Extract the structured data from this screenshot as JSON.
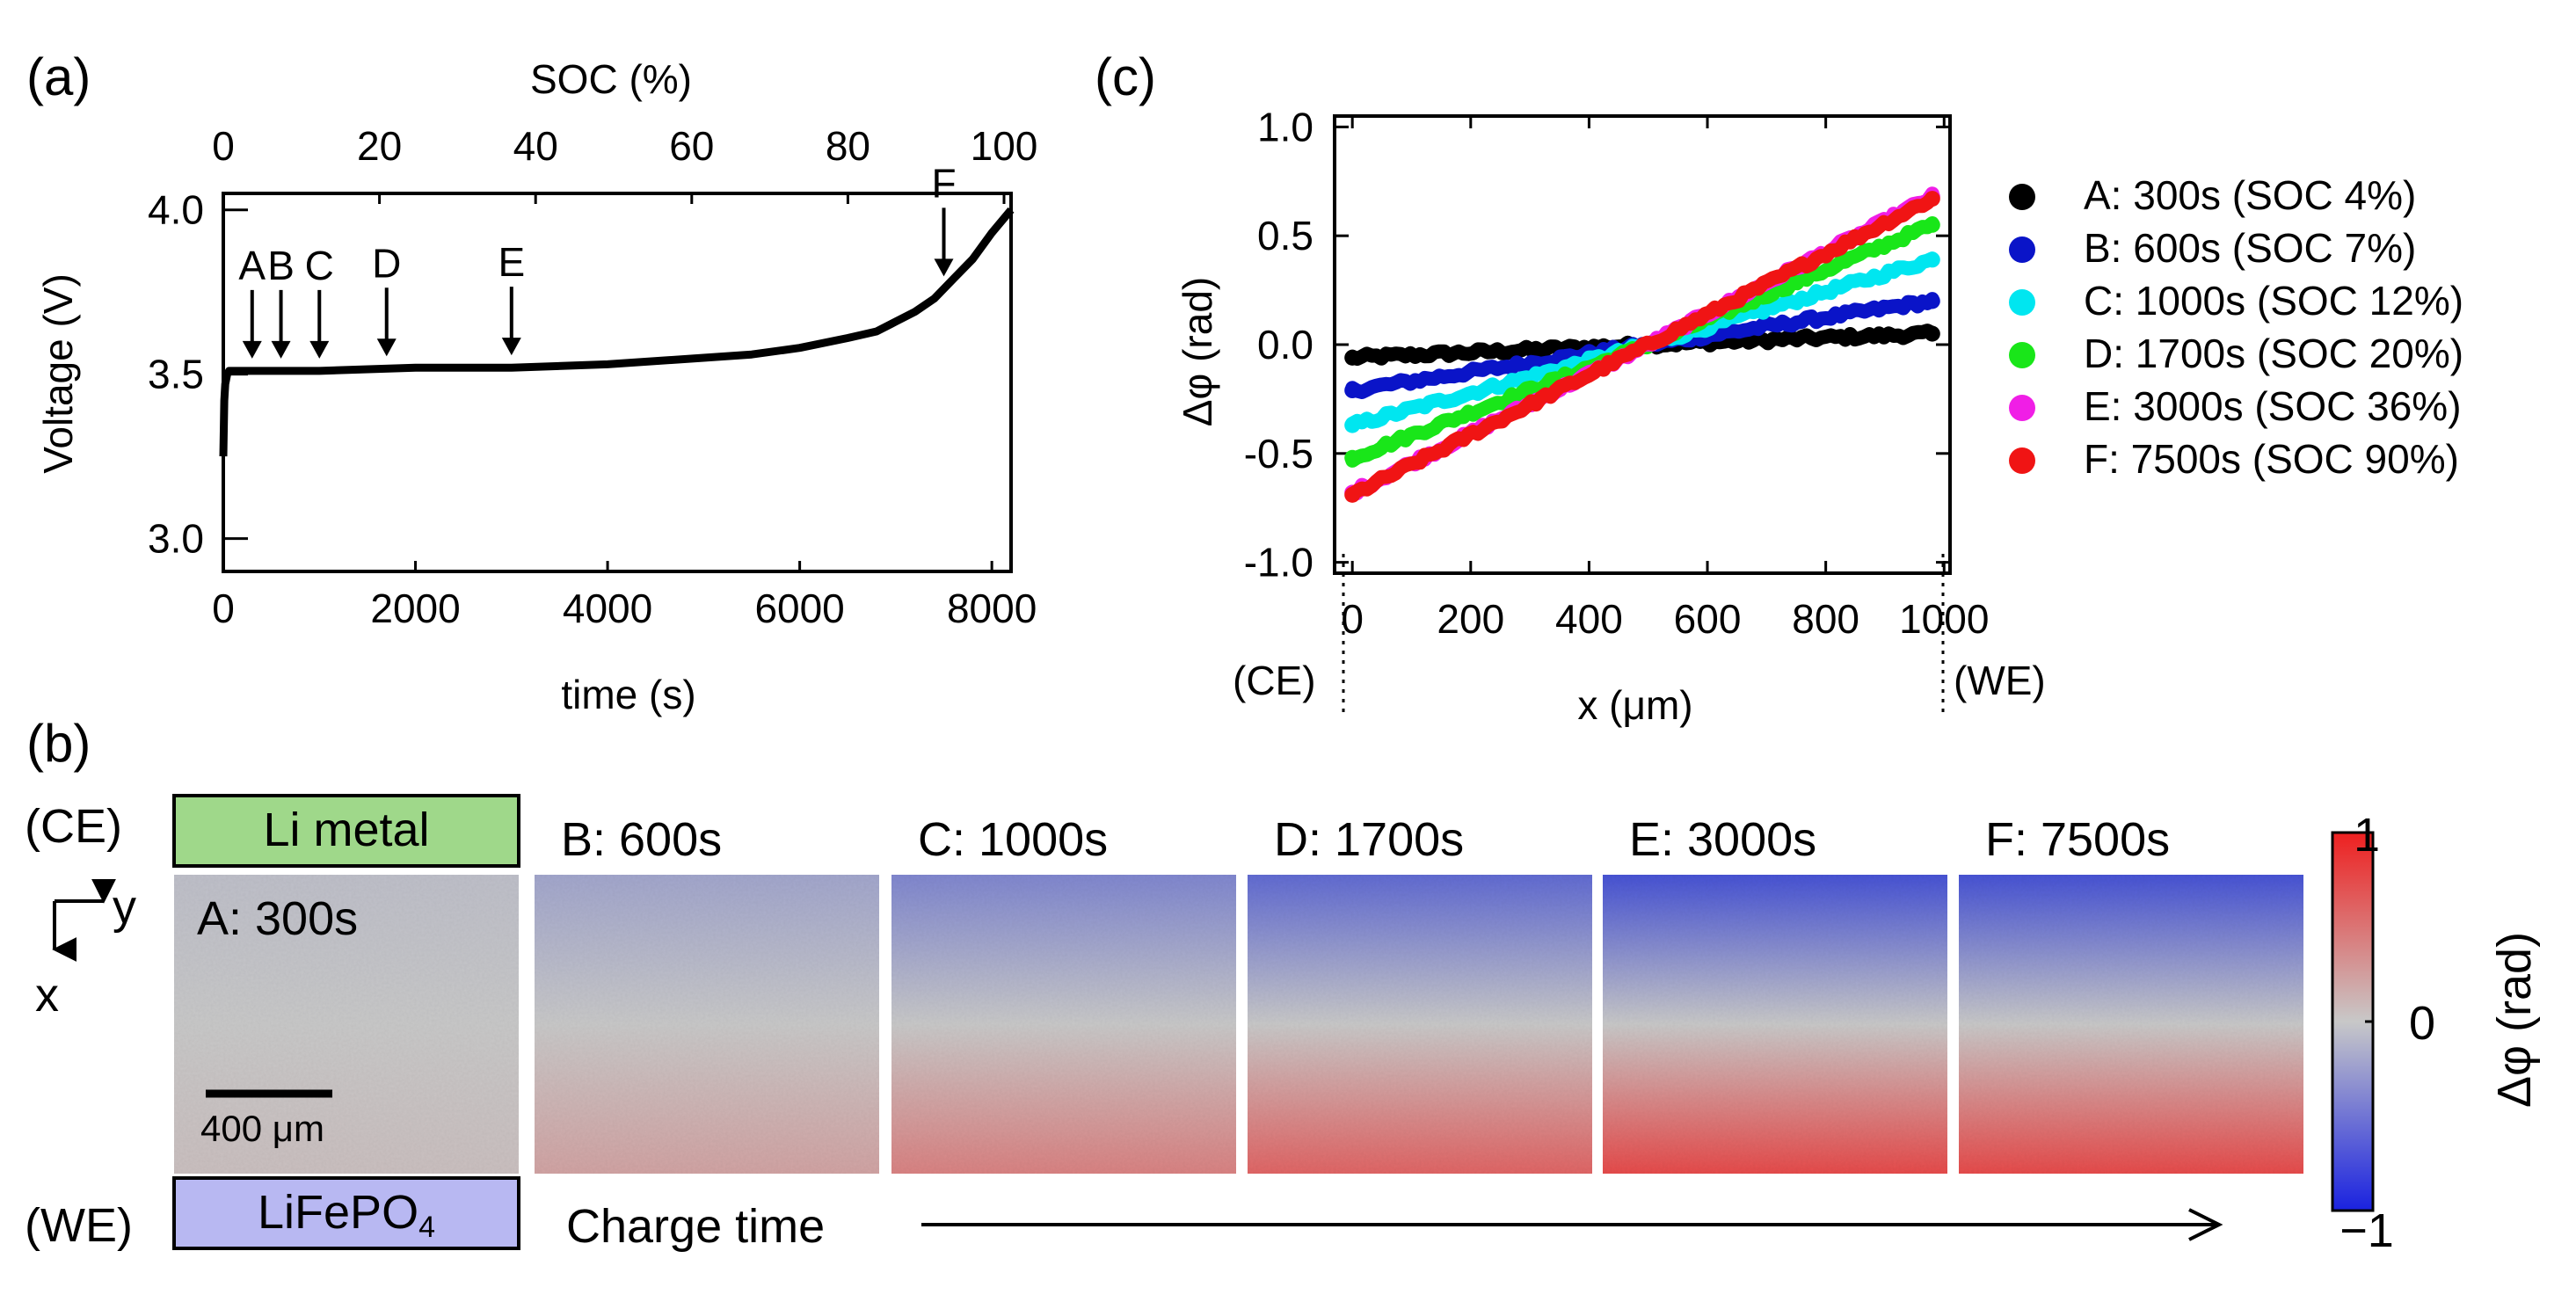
{
  "panel_labels": {
    "a": "(a)",
    "b": "(b)",
    "c": "(c)"
  },
  "chart_data": [
    {
      "id": "a",
      "type": "line",
      "xlabel": "time (s)",
      "xlabel_top": "SOC (%)",
      "ylabel": "Voltage (V)",
      "xlim": [
        0,
        8200
      ],
      "xlim_top": [
        0,
        100
      ],
      "ylim": [
        2.9,
        4.05
      ],
      "xticks": [
        "0",
        "2000",
        "4000",
        "6000",
        "8000"
      ],
      "xticks_values": [
        0,
        2000,
        4000,
        6000,
        8000
      ],
      "xticks_top": [
        "0",
        "20",
        "40",
        "60",
        "80",
        "100"
      ],
      "xticks_top_values": [
        0,
        20,
        40,
        60,
        80,
        100
      ],
      "yticks": [
        "3.0",
        "3.5",
        "4.0"
      ],
      "yticks_values": [
        3.0,
        3.5,
        4.0
      ],
      "series": [
        {
          "name": "charge curve",
          "x": [
            0,
            10,
            20,
            40,
            60,
            100,
            200,
            500,
            1000,
            2000,
            3000,
            4000,
            5000,
            5500,
            6000,
            6500,
            6800,
            7000,
            7200,
            7400,
            7600,
            7800,
            8000,
            8200
          ],
          "y": [
            3.25,
            3.42,
            3.47,
            3.5,
            3.51,
            3.51,
            3.51,
            3.51,
            3.51,
            3.52,
            3.52,
            3.53,
            3.55,
            3.56,
            3.58,
            3.61,
            3.63,
            3.66,
            3.69,
            3.73,
            3.79,
            3.85,
            3.93,
            4.0
          ]
        }
      ],
      "annotations": [
        {
          "label": "A",
          "x": 300
        },
        {
          "label": "B",
          "x": 600
        },
        {
          "label": "C",
          "x": 1000
        },
        {
          "label": "D",
          "x": 1700
        },
        {
          "label": "E",
          "x": 3000
        },
        {
          "label": "F",
          "x": 7500
        }
      ]
    },
    {
      "id": "c",
      "type": "scatter",
      "xlabel": "x (μm)",
      "ylabel": "Δφ (rad)",
      "xlim": [
        -30,
        1010
      ],
      "ylim": [
        -1.05,
        1.05
      ],
      "xticks": [
        "0",
        "200",
        "400",
        "600",
        "800",
        "1000"
      ],
      "xticks_values": [
        0,
        200,
        400,
        600,
        800,
        1000
      ],
      "yticks": [
        "1.0",
        "0.5",
        "0.0",
        "-0.5",
        "-1.0"
      ],
      "yticks_values": [
        1.0,
        0.5,
        0.0,
        -0.5,
        -1.0
      ],
      "edge_labels": {
        "left": "(CE)",
        "right": "(WE)"
      },
      "legend_position": "right",
      "series": [
        {
          "name": "A: 300s (SOC 4%)",
          "color": "#000000",
          "x": [
            0,
            500,
            980
          ],
          "y": [
            -0.06,
            0.0,
            0.05
          ]
        },
        {
          "name": "B: 600s (SOC 7%)",
          "color": "#0a14c8",
          "x": [
            0,
            500,
            980
          ],
          "y": [
            -0.21,
            0.0,
            0.2
          ]
        },
        {
          "name": "C: 1000s (SOC 12%)",
          "color": "#00e6f0",
          "x": [
            0,
            500,
            980
          ],
          "y": [
            -0.37,
            0.0,
            0.39
          ]
        },
        {
          "name": "D: 1700s (SOC 20%)",
          "color": "#19e619",
          "x": [
            0,
            500,
            980
          ],
          "y": [
            -0.52,
            0.0,
            0.55
          ]
        },
        {
          "name": "E: 3000s (SOC 36%)",
          "color": "#f01ee6",
          "x": [
            0,
            500,
            980
          ],
          "y": [
            -0.68,
            0.0,
            0.68
          ]
        },
        {
          "name": "F: 7500s (SOC 90%)",
          "color": "#f01414",
          "x": [
            0,
            500,
            980
          ],
          "y": [
            -0.69,
            0.0,
            0.67
          ]
        }
      ]
    },
    {
      "id": "b",
      "type": "heatmap",
      "electrode_top": "Li metal",
      "electrode_top_label": "(CE)",
      "electrode_bottom": "LiFePO",
      "electrode_bottom_sub": "4",
      "electrode_bottom_label": "(WE)",
      "axis_y": "y",
      "axis_x": "x",
      "scale_bar": "400 μm",
      "charge_time_label": "Charge time",
      "colorbar": {
        "label": "Δφ (rad)",
        "max": "1",
        "mid": "0",
        "min": "−1"
      },
      "frames": [
        {
          "label": "A: 300s",
          "amplitude": 0.05
        },
        {
          "label": "B: 600s",
          "amplitude": 0.2
        },
        {
          "label": "C: 1000s",
          "amplitude": 0.38
        },
        {
          "label": "D: 1700s",
          "amplitude": 0.54
        },
        {
          "label": "E: 3000s",
          "amplitude": 0.68
        },
        {
          "label": "F: 7500s",
          "amplitude": 0.68
        }
      ]
    }
  ],
  "colors": {
    "li_metal": "#9fd88a",
    "lifepo4": "#b8b8f2",
    "neg": "#2232d8",
    "mid": "#c8c8c8",
    "pos": "#ee2828"
  }
}
